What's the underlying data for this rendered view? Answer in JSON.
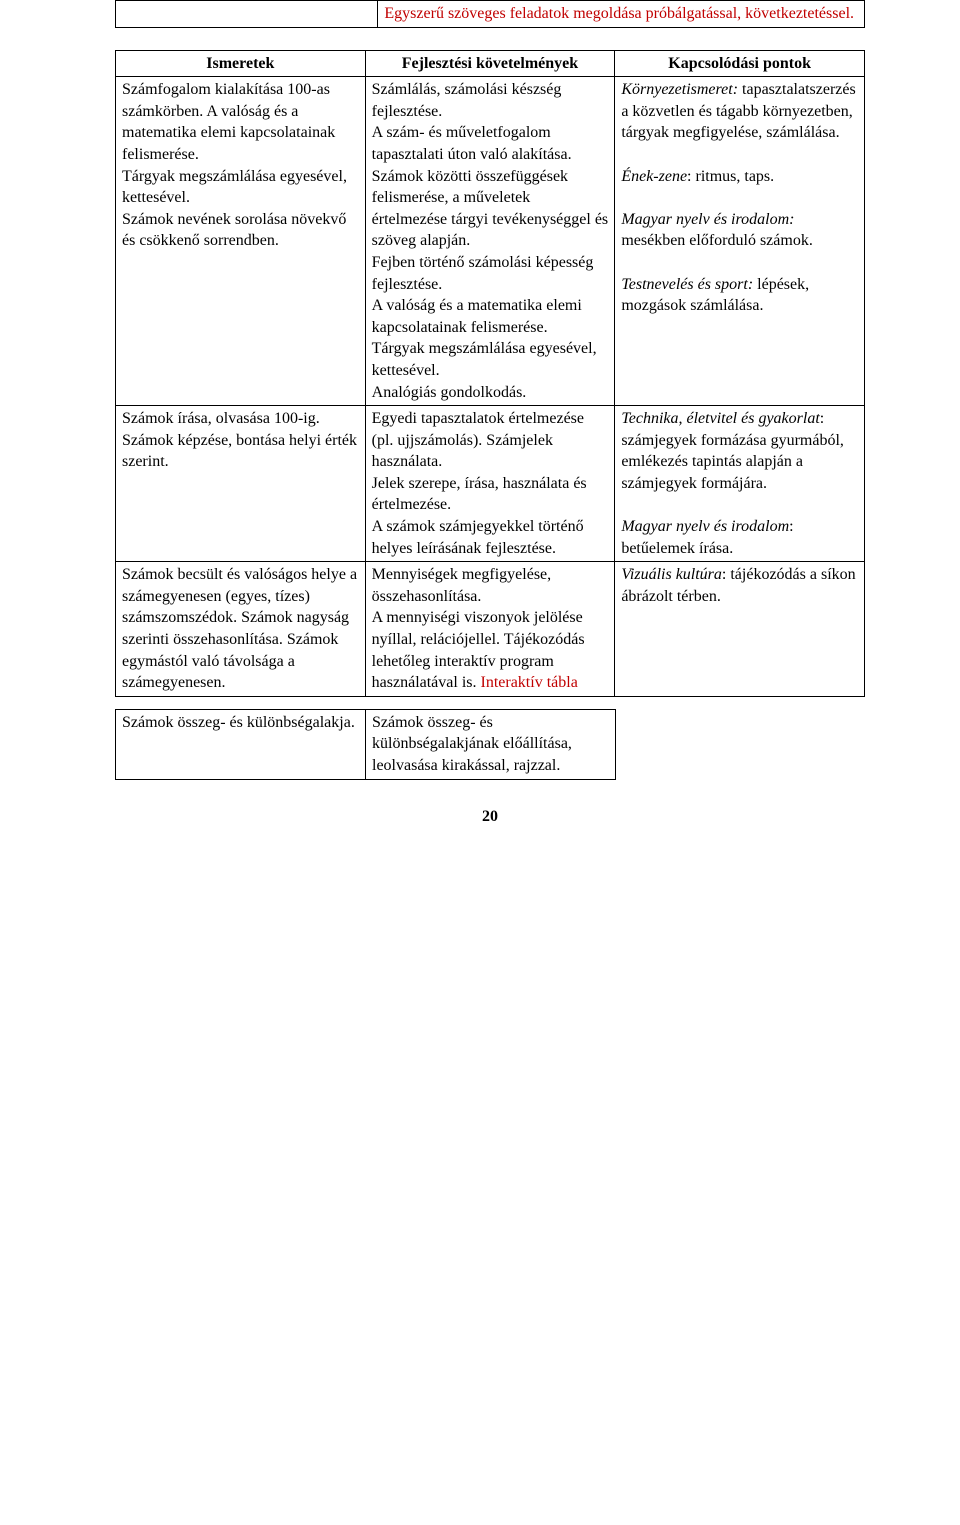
{
  "topTable": {
    "rightCell": {
      "text": "Egyszerű szöveges feladatok megoldása próbálgatással, következtetéssel.",
      "color": "#c00000"
    }
  },
  "headers": {
    "col1": "Ismeretek",
    "col2": "Fejlesztési követelmények",
    "col3": "Kapcsolódási pontok"
  },
  "rows": [
    {
      "c1": "Számfogalom kialakítása 100-as számkörben. A valóság és a matematika elemi kapcsolatainak felismerése.\nTárgyak megszámlálása egyesével, kettesével.\nSzámok nevének sorolása növekvő és csökkenő sorrendben.",
      "c2": "Számlálás, számolási készség fejlesztése.\nA szám- és műveletfogalom tapasztalati úton való alakítása.\nSzámok közötti összefüggések felismerése, a műveletek értelmezése tárgyi tevékenységgel és szöveg alapján.\nFejben történő számolási képesség fejlesztése.\nA valóság és a matematika elemi kapcsolatainak felismerése.\nTárgyak megszámlálása egyesével, kettesével.\nAnalógiás gondolkodás.",
      "c3_parts": [
        {
          "t": "Környezetismeret:",
          "italic": true
        },
        {
          "t": " tapasztalatszerzés a közvetlen és tágabb környezetben, tárgyak megfigyelése, számlálása."
        },
        {
          "br": true
        },
        {
          "br": true
        },
        {
          "t": "Ének-zene",
          "italic": true
        },
        {
          "t": ": ritmus, taps."
        },
        {
          "br": true
        },
        {
          "br": true
        },
        {
          "t": "Magyar nyelv és irodalom:",
          "italic": true
        },
        {
          "t": " mesékben előforduló számok."
        },
        {
          "br": true
        },
        {
          "br": true
        },
        {
          "t": "Testnevelés és sport:",
          "italic": true
        },
        {
          "t": " lépések, mozgások számlálása."
        }
      ]
    },
    {
      "c1": "Számok írása, olvasása 100-ig. Számok képzése, bontása helyi érték szerint.",
      "c2": "Egyedi tapasztalatok értelmezése (pl. ujjszámolás). Számjelek használata.\nJelek szerepe, írása, használata és értelmezése.\nA számok számjegyekkel történő helyes leírásának fejlesztése.",
      "c3_parts": [
        {
          "t": "Technika, életvitel és gyakorlat",
          "italic": true
        },
        {
          "t": ": számjegyek formázása gyurmából, emlékezés tapintás alapján a számjegyek formájára."
        },
        {
          "br": true
        },
        {
          "br": true
        },
        {
          "t": "Magyar nyelv és irodalom",
          "italic": true
        },
        {
          "t": ": betűelemek írása."
        }
      ]
    },
    {
      "c1": "Számok becsült és valóságos helye a számegyenesen (egyes, tízes) számszomszédok. Számok nagyság szerinti összehasonlítása. Számok egymástól való távolsága a számegyenesen.",
      "c2_parts": [
        {
          "t": "Mennyiségek megfigyelése, összehasonlítása.\nA mennyiségi viszonyok jelölése nyíllal, relációjellel. Tájékozódás lehetőleg interaktív program használatával is. "
        },
        {
          "t": "Interaktív tábla",
          "color": "#c00000"
        }
      ],
      "c3_parts": [
        {
          "t": "Vizuális kultúra",
          "italic": true
        },
        {
          "t": ": tájékozódás a síkon ábrázolt térben."
        }
      ]
    }
  ],
  "bottomRow": {
    "c1": "Számok összeg- és különbségalakja.",
    "c2": "Számok összeg- és különbségalakjának előállítása, leolvasása kirakással, rajzzal."
  },
  "pageNumber": "20"
}
